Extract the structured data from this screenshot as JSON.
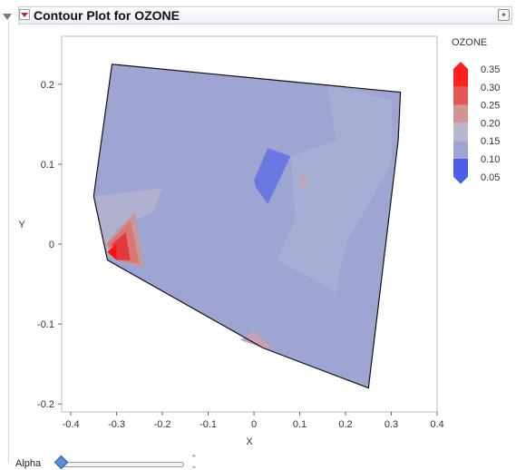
{
  "window": {
    "title": "Contour Plot for OZONE"
  },
  "chart_data": {
    "type": "contour",
    "title": "",
    "xlabel": "X",
    "ylabel": "Y",
    "xlim": [
      -0.42,
      0.4
    ],
    "ylim": [
      -0.21,
      0.26
    ],
    "x_ticks": [
      "-0.4",
      "-0.3",
      "-0.2",
      "-0.1",
      "0",
      "0.1",
      "0.2",
      "0.3",
      "0.4"
    ],
    "y_ticks": [
      "0.2",
      "0.1",
      "0",
      "-0.1",
      "-0.2"
    ],
    "legend": {
      "title": "OZONE",
      "levels": [
        "0.35",
        "0.30",
        "0.25",
        "0.20",
        "0.15",
        "0.10",
        "0.05"
      ],
      "colors": [
        "#ff1f1f",
        "#e25757",
        "#cf9696",
        "#b9b6cf",
        "#9ea5d3",
        "#6b78e2",
        "#4a5fe6"
      ]
    },
    "boundary": [
      [
        -0.31,
        0.225
      ],
      [
        0.32,
        0.19
      ],
      [
        0.315,
        0.13
      ],
      [
        0.25,
        -0.18
      ],
      [
        0.02,
        -0.13
      ],
      [
        -0.32,
        -0.02
      ],
      [
        -0.35,
        0.06
      ]
    ],
    "regions": [
      {
        "level": "0.10",
        "color": "#6b78e2",
        "points": [
          [
            0.0,
            0.08
          ],
          [
            0.03,
            0.12
          ],
          [
            0.08,
            0.11
          ],
          [
            0.03,
            0.05
          ],
          [
            0.005,
            0.07
          ]
        ]
      },
      {
        "level": "0.20",
        "color": "#c6a2b2",
        "points": [
          [
            0.1,
            0.09
          ],
          [
            0.12,
            0.08
          ],
          [
            0.11,
            0.07
          ]
        ]
      },
      {
        "level": "0.20",
        "color": "#c79a9a",
        "points": [
          [
            -0.325,
            0.0
          ],
          [
            -0.26,
            0.04
          ],
          [
            -0.24,
            -0.03
          ],
          [
            -0.3,
            -0.02
          ]
        ]
      },
      {
        "level": "0.25",
        "color": "#d97777",
        "points": [
          [
            -0.32,
            0.0
          ],
          [
            -0.27,
            0.03
          ],
          [
            -0.25,
            -0.025
          ],
          [
            -0.3,
            -0.02
          ]
        ]
      },
      {
        "level": "0.30",
        "color": "#e23a3a",
        "points": [
          [
            -0.31,
            0.0
          ],
          [
            -0.28,
            0.015
          ],
          [
            -0.27,
            -0.02
          ],
          [
            -0.3,
            -0.02
          ]
        ]
      },
      {
        "level": "0.35",
        "color": "#ff1010",
        "points": [
          [
            -0.32,
            -0.01
          ],
          [
            -0.3,
            0.0
          ],
          [
            -0.3,
            -0.02
          ]
        ]
      },
      {
        "level": "0.20",
        "color": "#c8a2b4",
        "points": [
          [
            -0.03,
            -0.12
          ],
          [
            0.02,
            -0.13
          ],
          [
            0.04,
            -0.13
          ],
          [
            0.0,
            -0.11
          ]
        ]
      }
    ]
  },
  "footer": {
    "alpha_label": "Alpha",
    "alpha_value": 0.0
  }
}
